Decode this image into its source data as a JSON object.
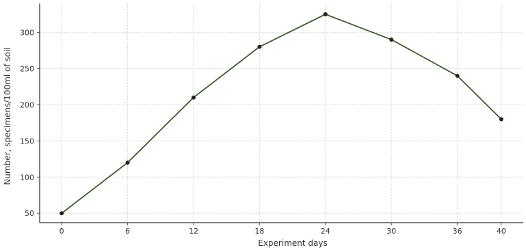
{
  "chart_data": {
    "type": "line",
    "title": "",
    "xlabel": "Experiment days",
    "ylabel": "Number, specimens/100ml of soil",
    "x": [
      0,
      6,
      12,
      18,
      24,
      30,
      36,
      40
    ],
    "x_tick_labels": [
      "0",
      "6",
      "12",
      "18",
      "24",
      "30",
      "36",
      "40"
    ],
    "y_tick_labels": [
      "50",
      "100",
      "150",
      "200",
      "250",
      "300"
    ],
    "series": [
      {
        "values": [
          50,
          120,
          210,
          280,
          325,
          290,
          240,
          180
        ],
        "color": "#3d5a2a"
      }
    ],
    "xlim": [
      -2,
      42
    ],
    "ylim": [
      37,
      340
    ],
    "y_ticks": [
      50,
      100,
      150,
      200,
      250,
      300
    ],
    "grid": true,
    "marker_color": "#222222"
  }
}
